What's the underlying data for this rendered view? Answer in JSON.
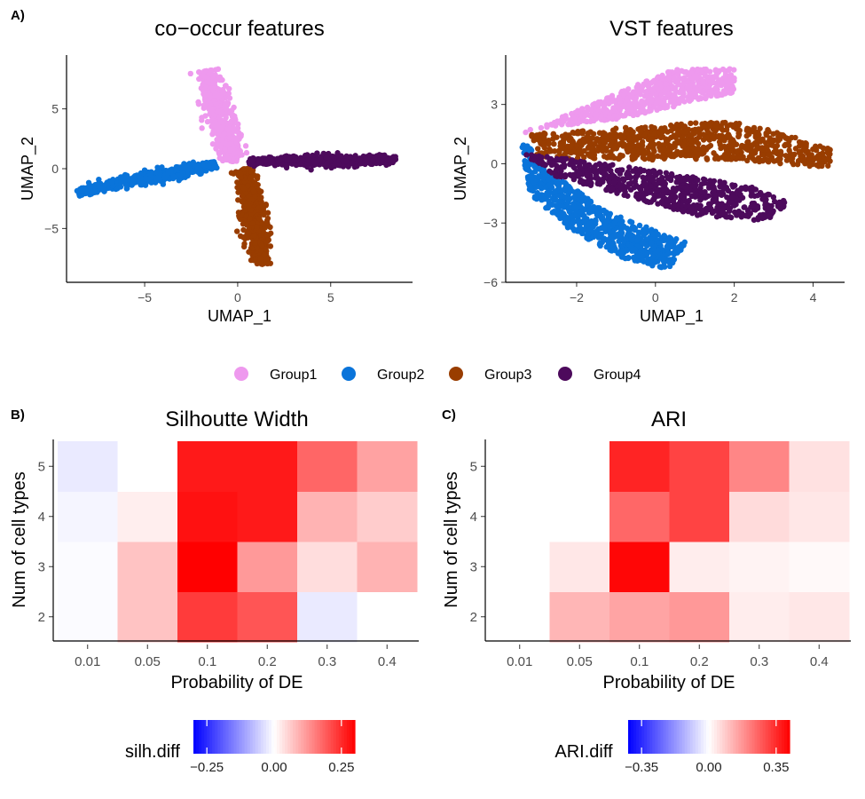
{
  "panel_labels": {
    "a": "A)",
    "b": "B)",
    "c": "C)"
  },
  "legend": {
    "groups": [
      {
        "name": "Group1",
        "color": "#EE99EE"
      },
      {
        "name": "Group2",
        "color": "#0A74DA"
      },
      {
        "name": "Group3",
        "color": "#993D00"
      },
      {
        "name": "Group4",
        "color": "#4D0A5C"
      }
    ]
  },
  "chart_data": [
    {
      "type": "scatter",
      "title": "co−occur features",
      "xlabel": "UMAP_1",
      "ylabel": "UMAP_2",
      "xlim": [
        -9.2,
        9.4
      ],
      "ylim": [
        -9.5,
        9.5
      ],
      "xticks": [
        -5,
        0,
        5
      ],
      "yticks": [
        -5,
        0,
        5
      ],
      "clusters": [
        {
          "group": "Group1",
          "x0": -1.7,
          "y0": 8.2,
          "x1": -0.2,
          "y1": 0.6,
          "width": 0.9,
          "n": 520
        },
        {
          "group": "Group2",
          "x0": -8.6,
          "y0": -2.0,
          "x1": -1.2,
          "y1": 0.4,
          "width": 0.6,
          "n": 520
        },
        {
          "group": "Group3",
          "x0": 0.4,
          "y0": 0.0,
          "x1": 1.3,
          "y1": -8.0,
          "width": 0.8,
          "n": 520
        },
        {
          "group": "Group4",
          "x0": 0.6,
          "y0": 0.6,
          "x1": 8.5,
          "y1": 0.7,
          "width": 0.55,
          "n": 520
        }
      ]
    },
    {
      "type": "scatter",
      "title": "VST features",
      "xlabel": "UMAP_1",
      "ylabel": "UMAP_2",
      "xlim": [
        -3.8,
        4.8
      ],
      "ylim": [
        -6.0,
        5.5
      ],
      "xticks": [
        -2,
        0,
        2,
        4
      ],
      "yticks": [
        -6,
        -3,
        0,
        3
      ],
      "clusters": [
        {
          "group": "Group1",
          "polygon": [
            [
              -3.3,
              1.5
            ],
            [
              -2.0,
              2.7
            ],
            [
              0.5,
              4.8
            ],
            [
              2.0,
              4.8
            ],
            [
              2.0,
              3.6
            ],
            [
              -0.8,
              2.3
            ],
            [
              -3.3,
              1.7
            ]
          ],
          "n": 600
        },
        {
          "group": "Group2",
          "polygon": [
            [
              -3.4,
              1.0
            ],
            [
              -3.2,
              -1.5
            ],
            [
              -2.2,
              -3.3
            ],
            [
              -0.8,
              -4.8
            ],
            [
              0.3,
              -5.4
            ],
            [
              0.8,
              -4.0
            ],
            [
              -1.2,
              -2.4
            ],
            [
              -2.8,
              -0.3
            ],
            [
              -3.2,
              1.0
            ]
          ],
          "n": 700
        },
        {
          "group": "Group3",
          "polygon": [
            [
              -3.2,
              1.5
            ],
            [
              -1.0,
              1.8
            ],
            [
              2.0,
              2.2
            ],
            [
              4.5,
              0.8
            ],
            [
              4.4,
              -0.2
            ],
            [
              2.0,
              0.2
            ],
            [
              -1.0,
              0.2
            ],
            [
              -3.0,
              0.3
            ]
          ],
          "n": 800
        },
        {
          "group": "Group4",
          "polygon": [
            [
              -3.3,
              0.5
            ],
            [
              -2.0,
              0.2
            ],
            [
              0.5,
              -0.5
            ],
            [
              2.5,
              -1.2
            ],
            [
              3.4,
              -2.0
            ],
            [
              2.8,
              -2.9
            ],
            [
              1.0,
              -2.6
            ],
            [
              -0.8,
              -1.6
            ],
            [
              -2.6,
              -0.6
            ],
            [
              -3.2,
              0.3
            ]
          ],
          "n": 650
        }
      ]
    },
    {
      "type": "heatmap",
      "title": "Silhoutte Width",
      "xlabel": "Probability of DE",
      "ylabel": "Num of cell types",
      "x": [
        "0.01",
        "0.05",
        "0.1",
        "0.2",
        "0.3",
        "0.4"
      ],
      "y": [
        "2",
        "3",
        "4",
        "5"
      ],
      "values": [
        [
          -0.005,
          0.07,
          0.23,
          0.2,
          -0.025,
          0.0
        ],
        [
          -0.005,
          0.07,
          0.3,
          0.12,
          0.04,
          0.09
        ],
        [
          -0.012,
          0.02,
          0.28,
          0.27,
          0.09,
          0.06
        ],
        [
          -0.025,
          0.0,
          0.27,
          0.27,
          0.18,
          0.11
        ]
      ],
      "legend_title": "silh.diff",
      "scale_limits": [
        -0.3,
        0.3
      ],
      "colorbar_ticks": [
        "−0.25",
        "0.00",
        "0.25"
      ],
      "colorbar_values": [
        -0.25,
        0.0,
        0.25
      ]
    },
    {
      "type": "heatmap",
      "title": "ARI",
      "xlabel": "Probability of DE",
      "ylabel": "Num of cell types",
      "x": [
        "0.01",
        "0.05",
        "0.1",
        "0.2",
        "0.3",
        "0.4"
      ],
      "y": [
        "2",
        "3",
        "4",
        "5"
      ],
      "values": [
        [
          0.0,
          0.12,
          0.15,
          0.17,
          0.03,
          0.04
        ],
        [
          0.0,
          0.04,
          0.41,
          0.03,
          0.02,
          0.01
        ],
        [
          0.0,
          0.0,
          0.25,
          0.31,
          0.06,
          0.04
        ],
        [
          0.0,
          0.0,
          0.36,
          0.31,
          0.2,
          0.05
        ]
      ],
      "legend_title": "ARI.diff",
      "scale_limits": [
        -0.42,
        0.42
      ],
      "colorbar_ticks": [
        "−0.35",
        "0.00",
        "0.35"
      ],
      "colorbar_values": [
        -0.35,
        0.0,
        0.35
      ]
    }
  ]
}
